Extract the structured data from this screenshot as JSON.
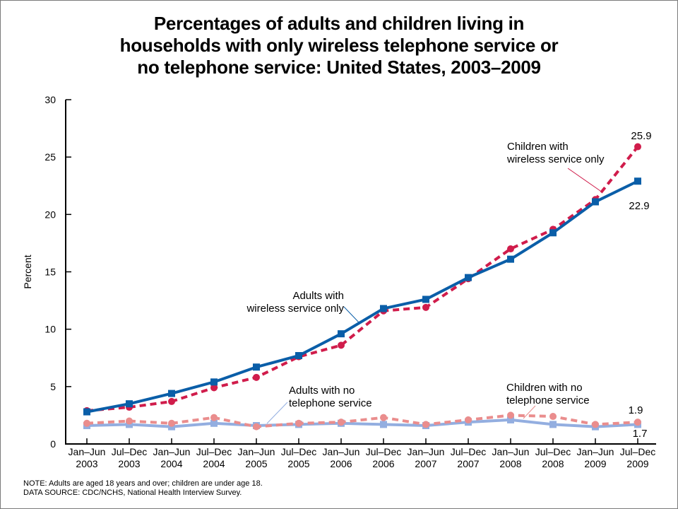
{
  "chart_data": {
    "type": "line",
    "title_lines": [
      "Percentages of adults and children living in",
      "households with only wireless telephone service or",
      "no telephone service: United States, 2003–2009"
    ],
    "title": "Percentages of adults and children living in households with only wireless telephone service or no telephone service: United States, 2003–2009",
    "xlabel": "",
    "ylabel": "Percent",
    "ylim": [
      0,
      30
    ],
    "yticks": [
      0,
      5,
      10,
      15,
      20,
      25,
      30
    ],
    "grid": false,
    "categories": [
      {
        "period": "Jan–Jun",
        "year": "2003"
      },
      {
        "period": "Jul–Dec",
        "year": "2003"
      },
      {
        "period": "Jan–Jun",
        "year": "2004"
      },
      {
        "period": "Jul–Dec",
        "year": "2004"
      },
      {
        "period": "Jan–Jun",
        "year": "2005"
      },
      {
        "period": "Jul–Dec",
        "year": "2005"
      },
      {
        "period": "Jan–Jun",
        "year": "2006"
      },
      {
        "period": "Jul–Dec",
        "year": "2006"
      },
      {
        "period": "Jan–Jun",
        "year": "2007"
      },
      {
        "period": "Jul–Dec",
        "year": "2007"
      },
      {
        "period": "Jan–Jun",
        "year": "2008"
      },
      {
        "period": "Jul–Dec",
        "year": "2008"
      },
      {
        "period": "Jan–Jun",
        "year": "2009"
      },
      {
        "period": "Jul–Dec",
        "year": "2009"
      }
    ],
    "series": [
      {
        "name": "Children with wireless service only",
        "key": "children-wireless",
        "color": "#d01c4b",
        "style": "dashed",
        "marker": "circle",
        "values": [
          2.9,
          3.2,
          3.7,
          4.9,
          5.8,
          7.6,
          8.6,
          11.6,
          11.9,
          14.4,
          17.0,
          18.7,
          21.3,
          25.9
        ],
        "end_label": "25.9"
      },
      {
        "name": "Adults with wireless service only",
        "key": "adults-wireless",
        "color": "#0a5ea8",
        "style": "solid",
        "marker": "square",
        "values": [
          2.8,
          3.5,
          4.4,
          5.4,
          6.7,
          7.7,
          9.6,
          11.8,
          12.6,
          14.5,
          16.1,
          18.4,
          21.1,
          22.9
        ],
        "end_label": "22.9"
      },
      {
        "name": "Children with no telephone service",
        "key": "children-no-phone",
        "color": "#ea8d8d",
        "style": "dashed",
        "marker": "circle",
        "values": [
          1.8,
          2.0,
          1.8,
          2.3,
          1.5,
          1.8,
          1.9,
          2.3,
          1.7,
          2.1,
          2.5,
          2.4,
          1.7,
          1.9
        ],
        "end_label": "1.9"
      },
      {
        "name": "Adults with no telephone service",
        "key": "adults-no-phone",
        "color": "#93aee0",
        "style": "solid",
        "marker": "square",
        "values": [
          1.6,
          1.7,
          1.5,
          1.8,
          1.6,
          1.7,
          1.8,
          1.7,
          1.6,
          1.9,
          2.1,
          1.7,
          1.5,
          1.7
        ],
        "end_label": "1.7"
      }
    ],
    "annotations": [
      {
        "key": "children-wireless",
        "lines": [
          "Children with",
          "wireless service only"
        ]
      },
      {
        "key": "adults-wireless",
        "lines": [
          "Adults with",
          "wireless service only"
        ]
      },
      {
        "key": "adults-no-phone",
        "lines": [
          "Adults with no",
          "telephone service"
        ]
      },
      {
        "key": "children-no-phone",
        "lines": [
          "Children with no",
          "telephone service"
        ]
      }
    ]
  },
  "footer": {
    "note": "NOTE: Adults are aged 18 years and over; children are under age 18.",
    "source": "DATA SOURCE: CDC/NCHS, National Health Interview Survey."
  }
}
